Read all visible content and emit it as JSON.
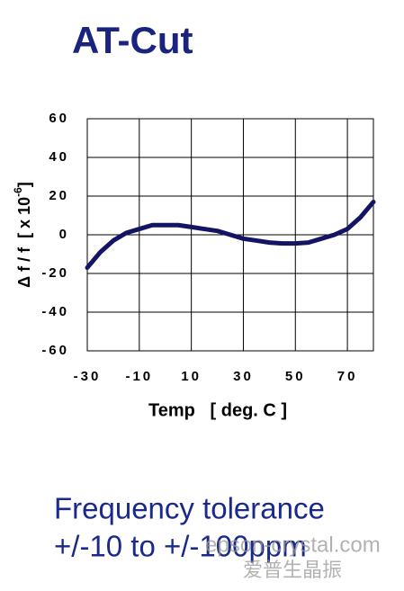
{
  "chart_data": {
    "type": "line",
    "title": "AT-Cut",
    "x_label": "Temp   [ deg. C ]",
    "y_label": "Δ f / f  [ x 10",
    "y_label_exponent": "-6",
    "y_label_end": "]",
    "x": [
      -30,
      -25,
      -20,
      -15,
      -10,
      -5,
      0,
      5,
      10,
      15,
      20,
      25,
      30,
      35,
      40,
      45,
      50,
      55,
      60,
      65,
      70,
      75,
      80
    ],
    "series": [
      {
        "name": "AT-Cut",
        "color": "#141464",
        "values": [
          -17,
          -9,
          -3,
          1,
          3,
          5,
          5,
          5,
          4,
          3,
          2,
          0,
          -2,
          -3,
          -4,
          -4.5,
          -4.5,
          -4,
          -2,
          0,
          3,
          9,
          17
        ]
      }
    ],
    "xlim": [
      -30,
      80
    ],
    "xticks": [
      -30,
      -10,
      10,
      30,
      50,
      70
    ],
    "ylim": [
      -60,
      60
    ],
    "yticks": [
      -60,
      -40,
      -20,
      0,
      20,
      40,
      60
    ],
    "grid": true
  },
  "caption": {
    "line1": "Frequency tolerance",
    "line2": "+/-10 to +/-100ppm"
  },
  "watermark": {
    "line1": "epson-crystal.com",
    "line2": "爱普生晶振"
  }
}
